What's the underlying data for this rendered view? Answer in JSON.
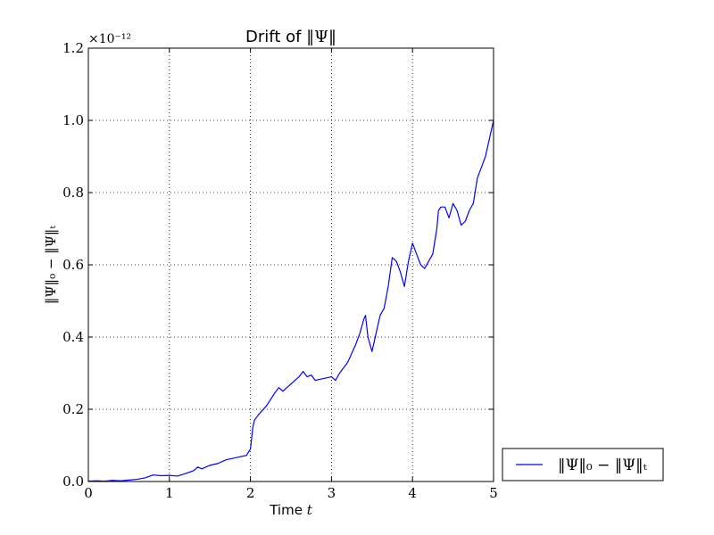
{
  "chart_data": {
    "type": "line",
    "title_text": "Drift of ",
    "title_math": "‖Ψ‖",
    "xlabel_text": "Time ",
    "xlabel_math": "t",
    "ylabel_math": "‖Ψ‖₀ − ‖Ψ‖ₜ",
    "y_offset_text": "×10⁻¹²",
    "y_multiplier": 1e-12,
    "xlim": [
      0,
      5
    ],
    "ylim": [
      0,
      1.2
    ],
    "xticks": [
      0,
      1,
      2,
      3,
      4,
      5
    ],
    "xtick_labels": [
      "0",
      "1",
      "2",
      "3",
      "4",
      "5"
    ],
    "yticks": [
      0,
      0.2,
      0.4,
      0.6,
      0.8,
      1.0,
      1.2
    ],
    "ytick_labels": [
      "0.0",
      "0.2",
      "0.4",
      "0.6",
      "0.8",
      "1.0",
      "1.2"
    ],
    "grid": true,
    "legend_position": "outside right, bottom",
    "series": [
      {
        "name": "‖Ψ‖₀ − ‖Ψ‖ₜ",
        "color": "#0000ff",
        "x": [
          0,
          0.1,
          0.2,
          0.3,
          0.4,
          0.5,
          0.6,
          0.7,
          0.8,
          0.9,
          1.0,
          1.1,
          1.2,
          1.3,
          1.35,
          1.4,
          1.5,
          1.6,
          1.7,
          1.8,
          1.9,
          1.95,
          2.0,
          2.03,
          2.05,
          2.1,
          2.2,
          2.3,
          2.35,
          2.4,
          2.45,
          2.5,
          2.55,
          2.6,
          2.65,
          2.7,
          2.75,
          2.8,
          2.9,
          3.0,
          3.05,
          3.1,
          3.2,
          3.3,
          3.35,
          3.4,
          3.42,
          3.45,
          3.5,
          3.6,
          3.65,
          3.7,
          3.75,
          3.8,
          3.85,
          3.9,
          3.95,
          4.0,
          4.05,
          4.1,
          4.15,
          4.2,
          4.25,
          4.3,
          4.32,
          4.35,
          4.4,
          4.45,
          4.5,
          4.55,
          4.6,
          4.65,
          4.7,
          4.75,
          4.8,
          4.85,
          4.9,
          4.95,
          5.0
        ],
        "y": [
          0.001,
          0.002,
          0.001,
          0.003,
          0.002,
          0.004,
          0.006,
          0.01,
          0.018,
          0.016,
          0.017,
          0.015,
          0.022,
          0.03,
          0.04,
          0.035,
          0.045,
          0.05,
          0.06,
          0.065,
          0.07,
          0.072,
          0.09,
          0.15,
          0.17,
          0.185,
          0.21,
          0.245,
          0.26,
          0.25,
          0.26,
          0.27,
          0.28,
          0.29,
          0.305,
          0.29,
          0.295,
          0.28,
          0.285,
          0.29,
          0.28,
          0.3,
          0.33,
          0.38,
          0.41,
          0.45,
          0.46,
          0.4,
          0.36,
          0.46,
          0.48,
          0.54,
          0.62,
          0.61,
          0.58,
          0.54,
          0.61,
          0.66,
          0.63,
          0.6,
          0.59,
          0.61,
          0.63,
          0.7,
          0.75,
          0.76,
          0.76,
          0.73,
          0.77,
          0.75,
          0.71,
          0.72,
          0.75,
          0.77,
          0.84,
          0.87,
          0.9,
          0.95,
          1.0
        ]
      }
    ]
  }
}
